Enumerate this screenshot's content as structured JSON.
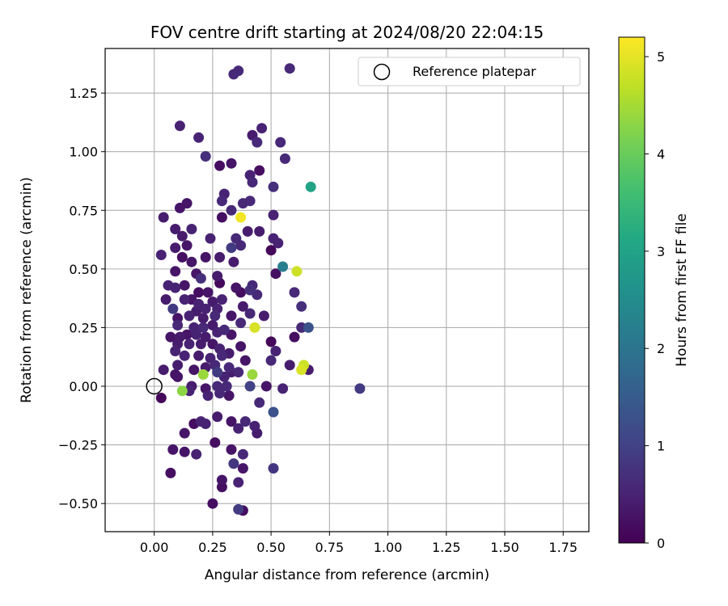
{
  "chart_data": {
    "type": "scatter",
    "title": "FOV centre drift starting at 2024/08/20 22:04:15",
    "xlabel": "Angular distance from reference (arcmin)",
    "ylabel": "Rotation from reference (arcmin)",
    "xlim": [
      -0.21,
      1.86
    ],
    "ylim": [
      -0.62,
      1.44
    ],
    "x_ticks": [
      "0.00",
      "0.25",
      "0.50",
      "0.75",
      "1.00",
      "1.25",
      "1.50",
      "1.75"
    ],
    "x_tick_values": [
      0,
      0.25,
      0.5,
      0.75,
      1.0,
      1.25,
      1.5,
      1.75
    ],
    "y_ticks": [
      "−0.50",
      "−0.25",
      "0.00",
      "0.25",
      "0.50",
      "0.75",
      "1.00",
      "1.25"
    ],
    "y_tick_values": [
      -0.5,
      -0.25,
      0,
      0.25,
      0.5,
      0.75,
      1.0,
      1.25
    ],
    "grid": true,
    "legend": {
      "position": "top-right",
      "label": "Reference platepar"
    },
    "reference_point": {
      "x": 0.0,
      "y": 0.0
    },
    "colorbar": {
      "label": "Hours from first FF file",
      "range": [
        0,
        5.2
      ],
      "ticks": [
        "0",
        "1",
        "2",
        "3",
        "4",
        "5"
      ],
      "tick_values": [
        0,
        1,
        2,
        3,
        4,
        5
      ],
      "colormap": "viridis"
    },
    "points": [
      [
        0.34,
        1.33,
        0.6
      ],
      [
        0.36,
        1.345,
        0.6
      ],
      [
        0.58,
        1.355,
        0.6
      ],
      [
        0.11,
        1.11,
        0.5
      ],
      [
        0.46,
        1.1,
        0.5
      ],
      [
        0.42,
        1.07,
        0.4
      ],
      [
        0.19,
        1.06,
        0.5
      ],
      [
        0.44,
        1.04,
        0.6
      ],
      [
        0.54,
        1.04,
        0.6
      ],
      [
        0.22,
        0.98,
        0.7
      ],
      [
        0.56,
        0.97,
        0.6
      ],
      [
        0.28,
        0.94,
        0.2
      ],
      [
        0.33,
        0.95,
        0.3
      ],
      [
        0.45,
        0.92,
        0.2
      ],
      [
        0.41,
        0.9,
        0.5
      ],
      [
        0.42,
        0.87,
        0.6
      ],
      [
        0.3,
        0.82,
        0.5
      ],
      [
        0.29,
        0.79,
        0.6
      ],
      [
        0.14,
        0.78,
        0.3
      ],
      [
        0.51,
        0.85,
        0.7
      ],
      [
        0.67,
        0.85,
        3.0
      ],
      [
        0.11,
        0.76,
        0.3
      ],
      [
        0.33,
        0.75,
        0.6
      ],
      [
        0.38,
        0.78,
        0.6
      ],
      [
        0.41,
        0.79,
        0.6
      ],
      [
        0.04,
        0.72,
        0.4
      ],
      [
        0.29,
        0.72,
        0.2
      ],
      [
        0.37,
        0.72,
        5.1
      ],
      [
        0.51,
        0.73,
        0.5
      ],
      [
        0.09,
        0.67,
        0.4
      ],
      [
        0.16,
        0.67,
        0.5
      ],
      [
        0.12,
        0.64,
        0.4
      ],
      [
        0.24,
        0.63,
        0.5
      ],
      [
        0.35,
        0.63,
        0.6
      ],
      [
        0.4,
        0.66,
        0.4
      ],
      [
        0.45,
        0.66,
        0.4
      ],
      [
        0.51,
        0.63,
        0.5
      ],
      [
        0.53,
        0.61,
        0.5
      ],
      [
        0.09,
        0.59,
        0.4
      ],
      [
        0.14,
        0.6,
        0.3
      ],
      [
        0.33,
        0.59,
        0.9
      ],
      [
        0.37,
        0.6,
        0.6
      ],
      [
        0.03,
        0.56,
        0.5
      ],
      [
        0.12,
        0.55,
        0.2
      ],
      [
        0.16,
        0.53,
        0.3
      ],
      [
        0.22,
        0.55,
        0.3
      ],
      [
        0.28,
        0.55,
        0.4
      ],
      [
        0.34,
        0.53,
        0.4
      ],
      [
        0.5,
        0.58,
        0.1
      ],
      [
        0.55,
        0.51,
        2.2
      ],
      [
        0.09,
        0.49,
        0.3
      ],
      [
        0.18,
        0.48,
        0.3
      ],
      [
        0.2,
        0.46,
        0.7
      ],
      [
        0.27,
        0.47,
        0.4
      ],
      [
        0.52,
        0.48,
        0.2
      ],
      [
        0.61,
        0.49,
        4.8
      ],
      [
        0.06,
        0.43,
        0.5
      ],
      [
        0.09,
        0.42,
        0.5
      ],
      [
        0.13,
        0.43,
        0.3
      ],
      [
        0.19,
        0.4,
        0.2
      ],
      [
        0.23,
        0.4,
        0.3
      ],
      [
        0.28,
        0.44,
        0.1
      ],
      [
        0.35,
        0.42,
        0.3
      ],
      [
        0.42,
        0.43,
        0.6
      ],
      [
        0.37,
        0.4,
        0.2
      ],
      [
        0.41,
        0.41,
        0.7
      ],
      [
        0.44,
        0.39,
        0.6
      ],
      [
        0.6,
        0.4,
        0.6
      ],
      [
        0.05,
        0.37,
        0.4
      ],
      [
        0.13,
        0.37,
        0.5
      ],
      [
        0.16,
        0.37,
        0.3
      ],
      [
        0.19,
        0.35,
        0.5
      ],
      [
        0.25,
        0.36,
        0.4
      ],
      [
        0.29,
        0.37,
        0.5
      ],
      [
        0.08,
        0.33,
        0.9
      ],
      [
        0.18,
        0.32,
        0.4
      ],
      [
        0.22,
        0.33,
        0.5
      ],
      [
        0.27,
        0.33,
        0.5
      ],
      [
        0.38,
        0.34,
        0.4
      ],
      [
        0.63,
        0.34,
        0.7
      ],
      [
        0.1,
        0.29,
        0.3
      ],
      [
        0.15,
        0.3,
        0.5
      ],
      [
        0.21,
        0.29,
        0.4
      ],
      [
        0.26,
        0.3,
        0.6
      ],
      [
        0.33,
        0.3,
        0.3
      ],
      [
        0.41,
        0.31,
        0.6
      ],
      [
        0.47,
        0.3,
        0.4
      ],
      [
        0.1,
        0.26,
        0.6
      ],
      [
        0.17,
        0.25,
        0.5
      ],
      [
        0.21,
        0.25,
        0.6
      ],
      [
        0.25,
        0.26,
        0.4
      ],
      [
        0.3,
        0.24,
        0.6
      ],
      [
        0.37,
        0.27,
        0.6
      ],
      [
        0.43,
        0.25,
        4.9
      ],
      [
        0.63,
        0.25,
        0.6
      ],
      [
        0.66,
        0.25,
        1.3
      ],
      [
        0.07,
        0.21,
        0.3
      ],
      [
        0.11,
        0.21,
        0.4
      ],
      [
        0.14,
        0.22,
        0.3
      ],
      [
        0.18,
        0.22,
        0.5
      ],
      [
        0.22,
        0.21,
        0.4
      ],
      [
        0.27,
        0.23,
        0.5
      ],
      [
        0.33,
        0.22,
        0.3
      ],
      [
        0.5,
        0.19,
        0.1
      ],
      [
        0.6,
        0.21,
        0.2
      ],
      [
        0.1,
        0.18,
        0.4
      ],
      [
        0.15,
        0.18,
        0.5
      ],
      [
        0.2,
        0.18,
        0.4
      ],
      [
        0.25,
        0.18,
        0.3
      ],
      [
        0.28,
        0.16,
        0.5
      ],
      [
        0.37,
        0.17,
        0.3
      ],
      [
        0.09,
        0.15,
        0.5
      ],
      [
        0.13,
        0.13,
        0.5
      ],
      [
        0.19,
        0.13,
        0.4
      ],
      [
        0.24,
        0.12,
        0.5
      ],
      [
        0.29,
        0.13,
        0.6
      ],
      [
        0.32,
        0.14,
        0.4
      ],
      [
        0.52,
        0.15,
        0.5
      ],
      [
        0.1,
        0.09,
        0.4
      ],
      [
        0.17,
        0.07,
        0.3
      ],
      [
        0.22,
        0.08,
        0.4
      ],
      [
        0.26,
        0.09,
        0.6
      ],
      [
        0.32,
        0.08,
        0.6
      ],
      [
        0.39,
        0.11,
        0.3
      ],
      [
        0.5,
        0.11,
        0.6
      ],
      [
        0.58,
        0.09,
        0.4
      ],
      [
        0.63,
        0.07,
        4.9
      ],
      [
        0.66,
        0.07,
        0.4
      ],
      [
        0.04,
        0.07,
        0.4
      ],
      [
        0.09,
        0.05,
        0.3
      ],
      [
        0.21,
        0.05,
        4.4
      ],
      [
        0.27,
        0.06,
        0.9
      ],
      [
        0.33,
        0.06,
        0.4
      ],
      [
        0.42,
        0.05,
        4.4
      ],
      [
        0.64,
        0.09,
        4.8
      ],
      [
        0.1,
        0.04,
        0.3
      ],
      [
        0.3,
        0.04,
        0.5
      ],
      [
        0.36,
        0.06,
        0.6
      ],
      [
        0.16,
        0.0,
        0.4
      ],
      [
        0.22,
        -0.01,
        0.3
      ],
      [
        0.27,
        0.0,
        0.6
      ],
      [
        0.31,
        0.0,
        0.6
      ],
      [
        0.41,
        0.0,
        1.0
      ],
      [
        0.48,
        0.0,
        0.3
      ],
      [
        0.55,
        -0.01,
        0.5
      ],
      [
        0.88,
        -0.01,
        0.9
      ],
      [
        0.03,
        -0.05,
        0.1
      ],
      [
        0.12,
        -0.02,
        4.3
      ],
      [
        0.15,
        -0.02,
        0.5
      ],
      [
        0.23,
        -0.04,
        0.5
      ],
      [
        0.28,
        -0.03,
        0.6
      ],
      [
        0.32,
        -0.04,
        0.3
      ],
      [
        0.45,
        -0.07,
        0.6
      ],
      [
        0.51,
        -0.11,
        1.3
      ],
      [
        0.17,
        -0.16,
        0.2
      ],
      [
        0.2,
        -0.15,
        0.5
      ],
      [
        0.22,
        -0.16,
        0.5
      ],
      [
        0.27,
        -0.13,
        0.4
      ],
      [
        0.33,
        -0.15,
        0.3
      ],
      [
        0.36,
        -0.18,
        0.5
      ],
      [
        0.39,
        -0.15,
        0.6
      ],
      [
        0.43,
        -0.17,
        0.5
      ],
      [
        0.44,
        -0.2,
        0.4
      ],
      [
        0.13,
        -0.2,
        0.3
      ],
      [
        0.26,
        -0.24,
        0.2
      ],
      [
        0.08,
        -0.27,
        0.3
      ],
      [
        0.13,
        -0.28,
        0.3
      ],
      [
        0.18,
        -0.29,
        0.5
      ],
      [
        0.33,
        -0.27,
        0.3
      ],
      [
        0.38,
        -0.29,
        0.6
      ],
      [
        0.34,
        -0.33,
        0.8
      ],
      [
        0.38,
        -0.35,
        0.3
      ],
      [
        0.51,
        -0.35,
        0.8
      ],
      [
        0.07,
        -0.37,
        0.2
      ],
      [
        0.29,
        -0.4,
        0.3
      ],
      [
        0.36,
        -0.41,
        0.5
      ],
      [
        0.29,
        -0.43,
        0.2
      ],
      [
        0.25,
        -0.5,
        0.2
      ],
      [
        0.36,
        -0.525,
        0.9
      ],
      [
        0.38,
        -0.53,
        0.2
      ]
    ]
  }
}
